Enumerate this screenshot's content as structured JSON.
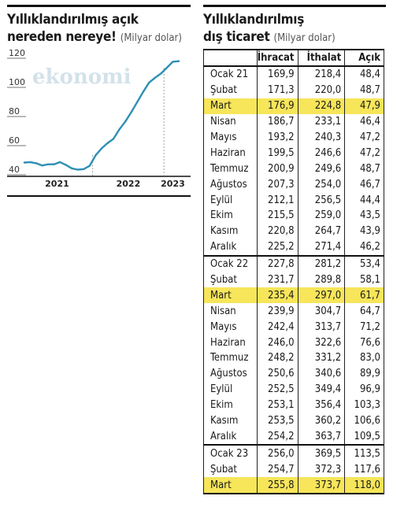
{
  "left_panel": {
    "title_line1": "Yıllıklandırılmış açık",
    "title_line2": "nereden nereye!",
    "unit": "(Milyar dolar)",
    "watermark": "ekonomi",
    "line_color": "#2f8fb4"
  },
  "right_panel": {
    "title_line1": "Yıllıklandırılmış",
    "title_line2": "dış ticaret",
    "unit": "(Milyar dolar)",
    "highlight_color": "#f7e55a"
  },
  "chart_data": [
    {
      "type": "line",
      "title": "Yıllıklandırılmış açık nereden nereye!",
      "ylabel": "Milyar dolar",
      "ylim": [
        40,
        120
      ],
      "yticks": [
        40,
        60,
        80,
        100,
        120
      ],
      "xlabels": [
        "2021",
        "2022",
        "2023"
      ],
      "grid": false,
      "x": [
        "2021-01",
        "2021-02",
        "2021-03",
        "2021-04",
        "2021-05",
        "2021-06",
        "2021-07",
        "2021-08",
        "2021-09",
        "2021-10",
        "2021-11",
        "2021-12",
        "2022-01",
        "2022-02",
        "2022-03",
        "2022-04",
        "2022-05",
        "2022-06",
        "2022-07",
        "2022-08",
        "2022-09",
        "2022-10",
        "2022-11",
        "2022-12",
        "2023-01",
        "2023-02",
        "2023-03"
      ],
      "series": [
        {
          "values": [
            48.4,
            48.7,
            47.9,
            46.4,
            47.2,
            47.2,
            48.7,
            46.7,
            44.4,
            43.5,
            43.9,
            46.2,
            53.4,
            58.1,
            61.7,
            64.7,
            71.2,
            76.6,
            83.0,
            89.9,
            96.9,
            103.3,
            106.6,
            109.5,
            113.5,
            117.6,
            118.0
          ]
        }
      ]
    },
    {
      "type": "table",
      "title": "Yıllıklandırılmış dış ticaret",
      "columns": [
        "",
        "İhracat",
        "İthalat",
        "Açık"
      ],
      "rows": [
        {
          "month": "Ocak 21",
          "exports": "169,9",
          "imports": "218,4",
          "deficit": "48,4",
          "highlight": false,
          "group_start": false
        },
        {
          "month": "Şubat",
          "exports": "171,3",
          "imports": "220,0",
          "deficit": "48,7",
          "highlight": false,
          "group_start": false
        },
        {
          "month": "Mart",
          "exports": "176,9",
          "imports": "224,8",
          "deficit": "47,9",
          "highlight": true,
          "group_start": false
        },
        {
          "month": "Nisan",
          "exports": "186,7",
          "imports": "233,1",
          "deficit": "46,4",
          "highlight": false,
          "group_start": false
        },
        {
          "month": "Mayıs",
          "exports": "193,2",
          "imports": "240,3",
          "deficit": "47,2",
          "highlight": false,
          "group_start": false
        },
        {
          "month": "Haziran",
          "exports": "199,5",
          "imports": "246,6",
          "deficit": "47,2",
          "highlight": false,
          "group_start": false
        },
        {
          "month": "Temmuz",
          "exports": "200,9",
          "imports": "249,6",
          "deficit": "48,7",
          "highlight": false,
          "group_start": false
        },
        {
          "month": "Ağustos",
          "exports": "207,3",
          "imports": "254,0",
          "deficit": "46,7",
          "highlight": false,
          "group_start": false
        },
        {
          "month": "Eylül",
          "exports": "212,1",
          "imports": "256,5",
          "deficit": "44,4",
          "highlight": false,
          "group_start": false
        },
        {
          "month": "Ekim",
          "exports": "215,5",
          "imports": "259,0",
          "deficit": "43,5",
          "highlight": false,
          "group_start": false
        },
        {
          "month": "Kasım",
          "exports": "220,8",
          "imports": "264,7",
          "deficit": "43,9",
          "highlight": false,
          "group_start": false
        },
        {
          "month": "Aralık",
          "exports": "225,2",
          "imports": "271,4",
          "deficit": "46,2",
          "highlight": false,
          "group_start": false
        },
        {
          "month": "Ocak 22",
          "exports": "227,8",
          "imports": "281,2",
          "deficit": "53,4",
          "highlight": false,
          "group_start": true
        },
        {
          "month": "Şubat",
          "exports": "231,7",
          "imports": "289,8",
          "deficit": "58,1",
          "highlight": false,
          "group_start": false
        },
        {
          "month": "Mart",
          "exports": "235,4",
          "imports": "297,0",
          "deficit": "61,7",
          "highlight": true,
          "group_start": false
        },
        {
          "month": "Nisan",
          "exports": "239,9",
          "imports": "304,7",
          "deficit": "64,7",
          "highlight": false,
          "group_start": false
        },
        {
          "month": "Mayıs",
          "exports": "242,4",
          "imports": "313,7",
          "deficit": "71,2",
          "highlight": false,
          "group_start": false
        },
        {
          "month": "Haziran",
          "exports": "246,0",
          "imports": "322,6",
          "deficit": "76,6",
          "highlight": false,
          "group_start": false
        },
        {
          "month": "Temmuz",
          "exports": "248,2",
          "imports": "331,2",
          "deficit": "83,0",
          "highlight": false,
          "group_start": false
        },
        {
          "month": "Ağustos",
          "exports": "250,6",
          "imports": "340,6",
          "deficit": "89,9",
          "highlight": false,
          "group_start": false
        },
        {
          "month": "Eylül",
          "exports": "252,5",
          "imports": "349,4",
          "deficit": "96,9",
          "highlight": false,
          "group_start": false
        },
        {
          "month": "Ekim",
          "exports": "253,1",
          "imports": "356,4",
          "deficit": "103,3",
          "highlight": false,
          "group_start": false
        },
        {
          "month": "Kasım",
          "exports": "253,5",
          "imports": "360,2",
          "deficit": "106,6",
          "highlight": false,
          "group_start": false
        },
        {
          "month": "Aralık",
          "exports": "254,2",
          "imports": "363,7",
          "deficit": "109,5",
          "highlight": false,
          "group_start": false
        },
        {
          "month": "Ocak 23",
          "exports": "256,0",
          "imports": "369,5",
          "deficit": "113,5",
          "highlight": false,
          "group_start": true
        },
        {
          "month": "Şubat",
          "exports": "254,7",
          "imports": "372,3",
          "deficit": "117,6",
          "highlight": false,
          "group_start": false
        },
        {
          "month": "Mart",
          "exports": "255,8",
          "imports": "373,7",
          "deficit": "118,0",
          "highlight": true,
          "group_start": false
        }
      ]
    }
  ]
}
